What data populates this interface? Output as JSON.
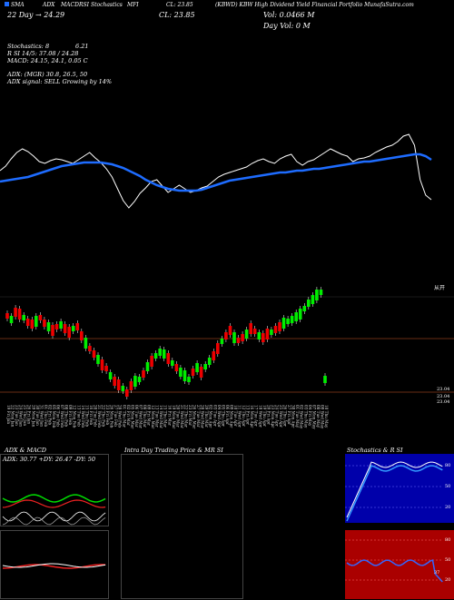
{
  "header": {
    "legend_labels": [
      "SMA",
      "ADX",
      "MACD",
      "RSI",
      "Stochastics",
      "MFI"
    ],
    "cl_label": "CL: 23.85",
    "rsi_series_label": "RSI",
    "title": "(KBWD) KBW High Dividend Yield Financial Portfolio MunafaSutra.com",
    "days_label": "22 Day",
    "days_value": "24.29",
    "vol_line": "Vol: 0.0466  M",
    "day_vol_line": "Day Vol: 0  M",
    "stoch_line": "Stochastics: 8",
    "stoch_value": "6.21",
    "rsi_line": "R                    SI 14/5: 37.08 / 24.28",
    "macd_line": "MACD: 24.15, 24.1, 0.05 C",
    "adx_line": "ADX:                         (MGR) 30.8, 26.5, 50",
    "adx_signal": "ADX  signal: SELL Growing by 14%"
  },
  "colors": {
    "sma": "#1e6cff",
    "price_line": "#ffffff",
    "up_candle": "#00ee00",
    "down_candle": "#ee0000",
    "level_line": "#8b3a1a",
    "adx_green": "#00dd00",
    "adx_red": "#ee2222",
    "stoch_bg": "#0000aa",
    "mfi_bg": "#aa0000"
  },
  "candle_panel": {
    "price_labels": {
      "high": "从开",
      "low_a": "23.04",
      "low_b": "23.04",
      "low_c": "23.04"
    }
  },
  "dates": [
    "19 Fri Jan",
    "22 Mon Jan",
    "23 Tue Jan",
    "24 Wed Jan",
    "25 Thu Jan",
    "26 Fri Jan",
    "29 Mon Jan",
    "30 Tue Jan",
    "31 Wed Jan",
    "01 Thu Feb",
    "02 Fri Feb",
    "05 Mon Feb",
    "06 Tue Feb",
    "07 Wed Feb",
    "08 Thu Feb",
    "09 Fri Feb",
    "12 Mon Feb",
    "13 Tue Feb",
    "14 Wed Feb",
    "15 Thu Feb",
    "16 Fri Feb",
    "20 Tue Feb",
    "21 Wed Feb",
    "22 Thu Feb",
    "23 Fri Feb",
    "26 Mon Feb",
    "27 Tue Feb",
    "28 Wed Feb",
    "01 Thu Mar",
    "02 Fri Mar",
    "05 Mon Mar",
    "06 Tue Mar",
    "07 Wed Mar",
    "08 Thu Mar",
    "09 Fri Mar",
    "12 Mon Mar",
    "13 Tue Mar",
    "14 Wed Mar",
    "15 Thu Mar",
    "16 Fri Mar",
    "19 Mon Mar",
    "20 Tue Mar",
    "21 Wed Mar",
    "22 Thu Mar",
    "23 Fri Mar",
    "26 Mon Mar",
    "27 Tue Mar",
    "28 Wed Mar",
    "29 Thu Mar",
    "02 Mon Apr",
    "03 Tue Apr",
    "04 Wed Apr",
    "05 Thu Apr",
    "06 Fri Apr",
    "09 Mon Apr",
    "10 Tue Apr",
    "11 Wed Apr",
    "12 Thu Apr",
    "13 Fri Apr",
    "16 Mon Apr",
    "17 Tue Apr",
    "18 Wed Apr",
    "19 Thu Apr",
    "20 Fri Apr",
    "23 Mon Apr",
    "24 Tue Apr",
    "25 Wed Apr",
    "26 Thu Apr",
    "27 Fri Apr",
    "30 Mon Apr",
    "01 Tue May",
    "02 Wed May",
    "03 Thu May",
    "04 Fri May",
    "07 Mon May",
    "08 Tue May",
    "09 Wed May",
    "10 Thu May"
  ],
  "panels": {
    "adx_title": "ADX  & MACD",
    "mrsi_title": "Intra  Day Trading Price  & MR                    SI",
    "stoch_title": "Stochastics & R                    SI",
    "adx_value_line": "ADX: 30.77 +DY: 26.47 -DY: 50",
    "stoch_levels": [
      "80",
      "50",
      "20"
    ],
    "mfi_levels": [
      "80",
      "50",
      "20"
    ],
    "mfi_value": "37"
  },
  "chart_data": [
    {
      "type": "line",
      "title": "Price and SMA",
      "series": [
        {
          "name": "price",
          "values": [
            188,
            183,
            175,
            168,
            164,
            167,
            172,
            178,
            180,
            177,
            175,
            176,
            178,
            180,
            176,
            172,
            168,
            174,
            179,
            186,
            195,
            208,
            221,
            229,
            222,
            213,
            207,
            200,
            198,
            205,
            212,
            208,
            204,
            208,
            212,
            210,
            207,
            205,
            200,
            195,
            192,
            190,
            188,
            186,
            184,
            180,
            177,
            175,
            178,
            180,
            175,
            172,
            170,
            178,
            182,
            178,
            176,
            172,
            168,
            164,
            167,
            170,
            172,
            178,
            175,
            174,
            172,
            168,
            165,
            162,
            160,
            156,
            150,
            148,
            160,
            198,
            215,
            220
          ]
        },
        {
          "name": "sma",
          "values": [
            200,
            199,
            198,
            197,
            196,
            195,
            193,
            191,
            189,
            187,
            185,
            183,
            182,
            181,
            180,
            179,
            179,
            179,
            179,
            180,
            181,
            183,
            185,
            188,
            191,
            194,
            198,
            201,
            204,
            206,
            208,
            209,
            210,
            210,
            210,
            210,
            209,
            207,
            205,
            203,
            201,
            199,
            198,
            197,
            196,
            195,
            194,
            193,
            192,
            191,
            190,
            190,
            189,
            188,
            188,
            187,
            186,
            186,
            185,
            184,
            183,
            182,
            181,
            180,
            179,
            178,
            178,
            177,
            176,
            175,
            174,
            173,
            172,
            171,
            170,
            170,
            172,
            176
          ]
        }
      ]
    },
    {
      "type": "bar",
      "title": "Candles",
      "series": [
        {
          "name": "candles",
          "values": [
            348,
            352,
            344,
            346,
            350,
            355,
            357,
            354,
            350,
            356,
            360,
            364,
            360,
            358,
            362,
            366,
            362,
            360,
            370,
            378,
            384,
            390,
            396,
            402,
            406,
            414,
            420,
            424,
            428,
            433,
            425,
            420,
            418,
            412,
            404,
            398,
            392,
            388,
            390,
            395,
            400,
            405,
            410,
            414,
            418,
            410,
            405,
            410,
            404,
            398,
            392,
            384,
            376,
            370,
            364,
            372,
            375,
            372,
            368,
            362,
            365,
            370,
            372,
            368,
            366,
            363,
            360,
            356,
            354,
            352,
            349,
            346,
            340,
            334,
            330,
            325,
            322,
            418
          ]
        }
      ]
    }
  ]
}
